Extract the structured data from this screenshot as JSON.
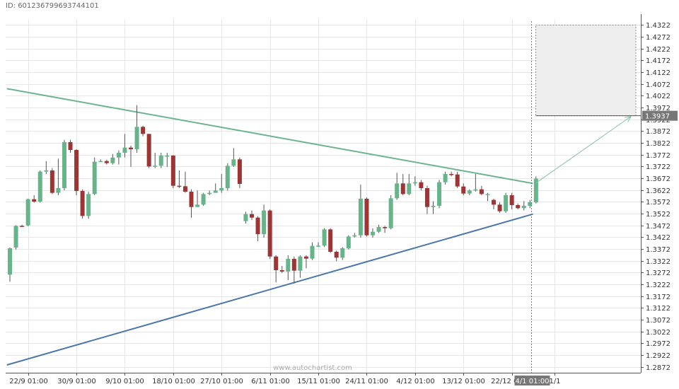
{
  "header": {
    "id_label": "ID: 6012367996937441​01"
  },
  "watermark": "www.autochartist.com",
  "chart_data": {
    "type": "candlestick",
    "y_range": [
      1.2847,
      1.4347
    ],
    "y_ticks": [
      "1.4322",
      "1.4272",
      "1.4222",
      "1.4172",
      "1.4122",
      "1.4072",
      "1.4022",
      "1.3972",
      "1.3922",
      "1.3872",
      "1.3822",
      "1.3772",
      "1.3722",
      "1.3672",
      "1.3622",
      "1.3572",
      "1.3522",
      "1.3472",
      "1.3422",
      "1.3372",
      "1.3322",
      "1.3272",
      "1.3222",
      "1.3172",
      "1.3122",
      "1.3072",
      "1.3022",
      "1.2972",
      "1.2922",
      "1.2872"
    ],
    "x_ticks": [
      {
        "i": 3,
        "label": "22/9 01:00"
      },
      {
        "i": 11,
        "label": "30/9 01:00"
      },
      {
        "i": 19,
        "label": "9/10 01:00"
      },
      {
        "i": 27,
        "label": "18/10 01:00"
      },
      {
        "i": 35,
        "label": "27/10 01:00"
      },
      {
        "i": 43,
        "label": "6/11 01:00"
      },
      {
        "i": 51,
        "label": "15/11 01:00"
      },
      {
        "i": 59,
        "label": "24/11 01:00"
      },
      {
        "i": 67,
        "label": "4/12 01:00"
      },
      {
        "i": 75,
        "label": "13/12 01:00"
      },
      {
        "i": 83,
        "label": "22/12 01:00"
      },
      {
        "i": 90,
        "label": "1/1"
      }
    ],
    "current_time_label": "4/1 01:00",
    "current_price_label": "1.3937",
    "candles": [
      [
        1.3263,
        1.3375,
        1.3233,
        1.3378
      ],
      [
        1.3378,
        1.347,
        1.337,
        1.3473
      ],
      [
        1.347,
        1.3469,
        1.3465,
        1.3475
      ],
      [
        1.3472,
        1.3583,
        1.3468,
        1.3585
      ],
      [
        1.3583,
        1.3573,
        1.3568,
        1.36
      ],
      [
        1.3573,
        1.37,
        1.3568,
        1.3705
      ],
      [
        1.37,
        1.3705,
        1.369,
        1.3745
      ],
      [
        1.3705,
        1.361,
        1.3605,
        1.3715
      ],
      [
        1.361,
        1.363,
        1.36,
        1.3755
      ],
      [
        1.363,
        1.3825,
        1.362,
        1.3835
      ],
      [
        1.3825,
        1.3792,
        1.378,
        1.3835
      ],
      [
        1.3792,
        1.3618,
        1.36,
        1.3795
      ],
      [
        1.3618,
        1.3512,
        1.35,
        1.3625
      ],
      [
        1.3512,
        1.3605,
        1.35,
        1.3615
      ],
      [
        1.3605,
        1.3742,
        1.36,
        1.376
      ],
      [
        1.3742,
        1.3745,
        1.374,
        1.3752
      ],
      [
        1.3745,
        1.3736,
        1.373,
        1.375
      ],
      [
        1.3736,
        1.376,
        1.373,
        1.3775
      ],
      [
        1.376,
        1.378,
        1.373,
        1.379
      ],
      [
        1.378,
        1.3802,
        1.376,
        1.386
      ],
      [
        1.3802,
        1.3795,
        1.372,
        1.381
      ],
      [
        1.3795,
        1.389,
        1.378,
        1.3982
      ],
      [
        1.389,
        1.386,
        1.385,
        1.3895
      ],
      [
        1.386,
        1.3722,
        1.3715,
        1.386
      ],
      [
        1.3722,
        1.3725,
        1.3715,
        1.378
      ],
      [
        1.3725,
        1.3768,
        1.3715,
        1.378
      ],
      [
        1.3768,
        1.3768,
        1.372,
        1.378
      ],
      [
        1.3768,
        1.364,
        1.363,
        1.377
      ],
      [
        1.364,
        1.3638,
        1.363,
        1.3705
      ],
      [
        1.3638,
        1.3615,
        1.361,
        1.37
      ],
      [
        1.3615,
        1.355,
        1.3505,
        1.3625
      ],
      [
        1.355,
        1.356,
        1.355,
        1.362
      ],
      [
        1.356,
        1.3605,
        1.3555,
        1.361
      ],
      [
        1.3605,
        1.361,
        1.36,
        1.362
      ],
      [
        1.361,
        1.362,
        1.3615,
        1.365
      ],
      [
        1.362,
        1.363,
        1.361,
        1.369
      ],
      [
        1.363,
        1.3725,
        1.362,
        1.3735
      ],
      [
        1.3725,
        1.3752,
        1.372,
        1.38
      ],
      [
        1.3752,
        1.3648,
        1.363,
        1.376
      ],
      [
        1.349,
        1.352,
        1.348,
        1.353
      ],
      [
        1.352,
        1.3505,
        1.3495,
        1.3535
      ],
      [
        1.3505,
        1.3435,
        1.3405,
        1.351
      ],
      [
        1.3435,
        1.3535,
        1.342,
        1.356
      ],
      [
        1.3535,
        1.334,
        1.333,
        1.354
      ],
      [
        1.334,
        1.3282,
        1.323,
        1.3345
      ],
      [
        1.3282,
        1.3276,
        1.327,
        1.33
      ],
      [
        1.3276,
        1.333,
        1.324,
        1.3345
      ],
      [
        1.333,
        1.328,
        1.3225,
        1.334
      ],
      [
        1.328,
        1.334,
        1.325,
        1.3345
      ],
      [
        1.334,
        1.3331,
        1.329,
        1.3345
      ],
      [
        1.3331,
        1.3385,
        1.3325,
        1.34
      ],
      [
        1.3385,
        1.3386,
        1.338,
        1.34
      ],
      [
        1.3386,
        1.3455,
        1.338,
        1.346
      ],
      [
        1.3455,
        1.336,
        1.3355,
        1.346
      ],
      [
        1.336,
        1.3335,
        1.332,
        1.3365
      ],
      [
        1.3335,
        1.3375,
        1.3325,
        1.338
      ],
      [
        1.3375,
        1.3425,
        1.337,
        1.343
      ],
      [
        1.3425,
        1.343,
        1.342,
        1.344
      ],
      [
        1.343,
        1.3585,
        1.342,
        1.3645
      ],
      [
        1.3585,
        1.343,
        1.3425,
        1.359
      ],
      [
        1.343,
        1.3445,
        1.342,
        1.346
      ],
      [
        1.3445,
        1.3465,
        1.344,
        1.3475
      ],
      [
        1.3465,
        1.346,
        1.344,
        1.347
      ],
      [
        1.346,
        1.3587,
        1.3455,
        1.36
      ],
      [
        1.3587,
        1.365,
        1.358,
        1.3695
      ],
      [
        1.365,
        1.3605,
        1.36,
        1.369
      ],
      [
        1.3605,
        1.365,
        1.36,
        1.369
      ],
      [
        1.365,
        1.3655,
        1.364,
        1.368
      ],
      [
        1.3655,
        1.363,
        1.362,
        1.3665
      ],
      [
        1.363,
        1.355,
        1.352,
        1.364
      ],
      [
        1.355,
        1.3555,
        1.352,
        1.3575
      ],
      [
        1.3555,
        1.3655,
        1.3545,
        1.3665
      ],
      [
        1.3655,
        1.369,
        1.3645,
        1.37
      ],
      [
        1.369,
        1.3688,
        1.368,
        1.37
      ],
      [
        1.3688,
        1.3637,
        1.363,
        1.37
      ],
      [
        1.3637,
        1.3607,
        1.36,
        1.365
      ],
      [
        1.3607,
        1.362,
        1.36,
        1.3625
      ],
      [
        1.362,
        1.3625,
        1.3615,
        1.369
      ],
      [
        1.3625,
        1.3605,
        1.36,
        1.364
      ],
      [
        1.3605,
        1.3605,
        1.3575,
        1.361
      ],
      [
        1.358,
        1.356,
        1.354,
        1.3585
      ],
      [
        1.356,
        1.3532,
        1.3525,
        1.357
      ],
      [
        1.3532,
        1.36,
        1.3525,
        1.361
      ],
      [
        1.36,
        1.3558,
        1.354,
        1.361
      ],
      [
        1.3558,
        1.3545,
        1.354,
        1.3565
      ],
      [
        1.3545,
        1.3555,
        1.3535,
        1.3575
      ],
      [
        1.3555,
        1.357,
        1.3545,
        1.358
      ],
      [
        1.357,
        1.367,
        1.3565,
        1.368
      ]
    ],
    "trendlines": [
      {
        "name": "resistance",
        "color": "#6db38f",
        "from": {
          "i": -0.5,
          "price": 1.4052
        },
        "to": {
          "i": 86.5,
          "price": 1.365
        }
      },
      {
        "name": "support",
        "color": "#4a76a8",
        "from": {
          "i": -0.5,
          "price": 1.288
        },
        "to": {
          "i": 86.5,
          "price": 1.352
        }
      }
    ],
    "forecast_zone": {
      "price_top": 1.4322,
      "price_bottom": 1.3937
    },
    "colors": {
      "up": "#67b38a",
      "down": "#9e3535",
      "wick": "#555555",
      "grid": "#e6e6e6",
      "axis": "#555555",
      "label_bg": "#777777"
    }
  }
}
